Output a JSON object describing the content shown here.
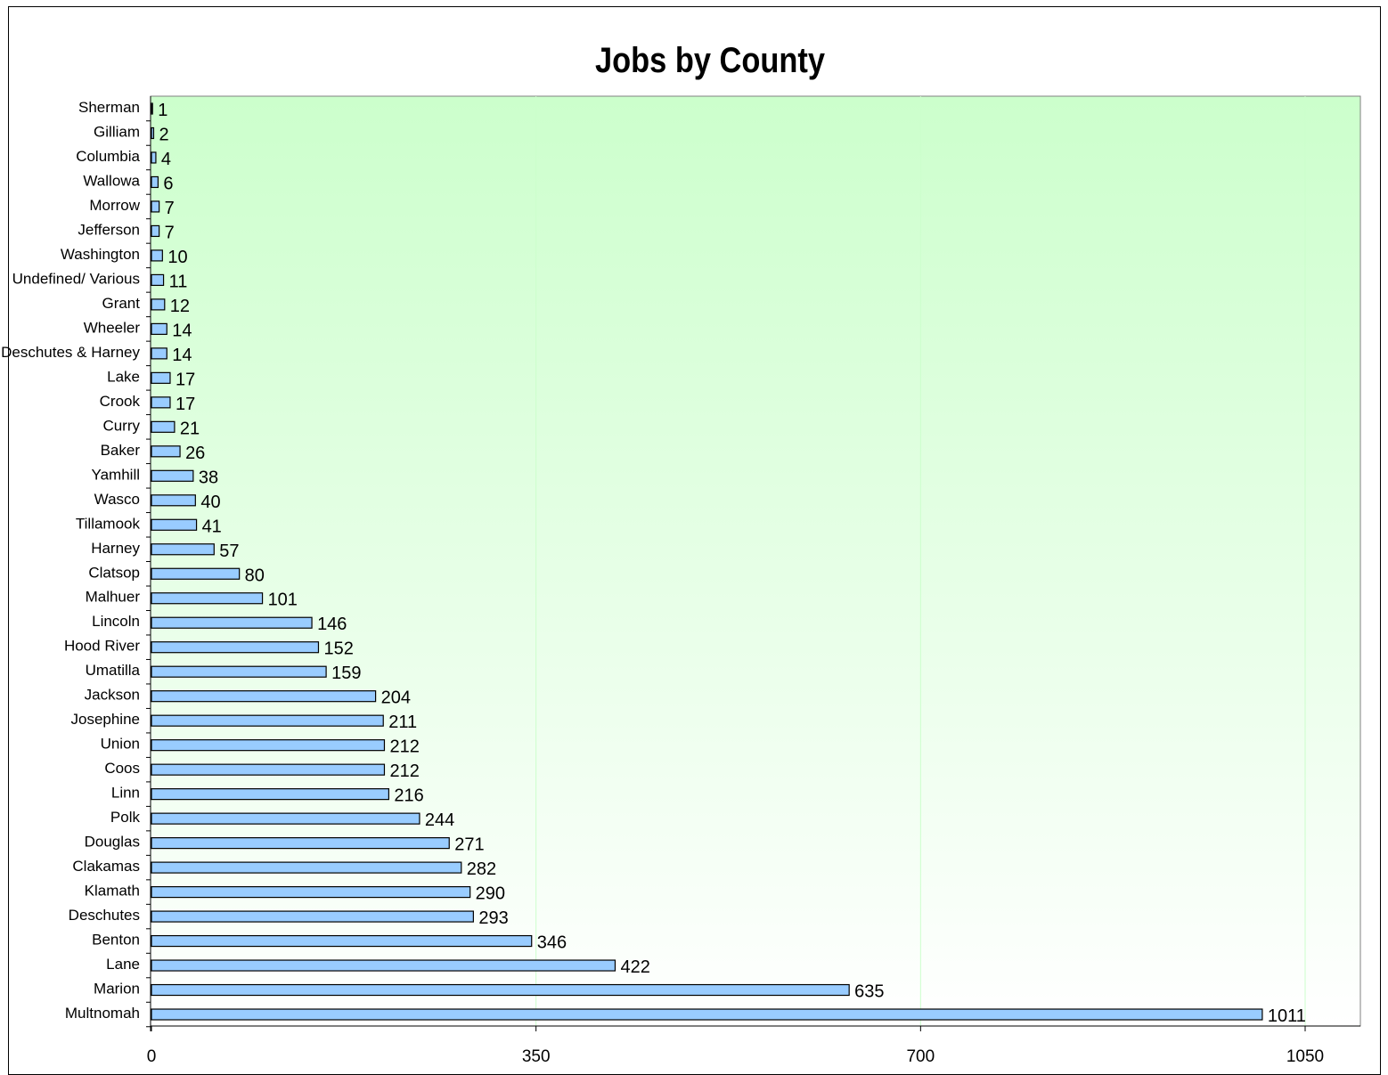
{
  "chart_data": {
    "type": "bar",
    "orientation": "horizontal",
    "title": "Jobs by County",
    "xlabel": "",
    "ylabel": "",
    "xlim": [
      0,
      1100
    ],
    "x_ticks": [
      0,
      350,
      700,
      1050
    ],
    "grid": "vertical major gridlines",
    "legend": "none",
    "categories": [
      "Sherman",
      "Gilliam",
      "Columbia",
      "Wallowa",
      "Morrow",
      "Jefferson",
      "Washington",
      "Undefined/ Various",
      "Grant",
      "Wheeler",
      "Deschutes & Harney",
      "Lake",
      "Crook",
      "Curry",
      "Baker",
      "Yamhill",
      "Wasco",
      "Tillamook",
      "Harney",
      "Clatsop",
      "Malhuer",
      "Lincoln",
      "Hood River",
      "Umatilla",
      "Jackson",
      "Josephine",
      "Union",
      "Coos",
      "Linn",
      "Polk",
      "Douglas",
      "Clakamas",
      "Klamath",
      "Deschutes",
      "Benton",
      "Lane",
      "Marion",
      "Multnomah"
    ],
    "values": [
      1,
      2,
      4,
      6,
      7,
      7,
      10,
      11,
      12,
      14,
      14,
      17,
      17,
      21,
      26,
      38,
      40,
      41,
      57,
      80,
      101,
      146,
      152,
      159,
      204,
      211,
      212,
      212,
      216,
      244,
      271,
      282,
      290,
      293,
      346,
      422,
      635,
      1011
    ],
    "data_labels": true
  },
  "colors": {
    "bar_fill": "#99ccff",
    "bar_stroke": "#000000",
    "plot_bg_top": "#ccffcc",
    "plot_bg_bottom": "#ffffff",
    "gridline": "#ccffcc"
  }
}
